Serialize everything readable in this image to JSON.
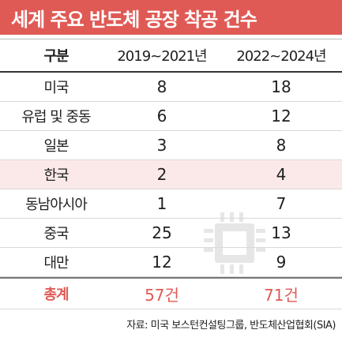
{
  "title": "세계 주요 반도체 공장 착공 건수",
  "columns": [
    "구분",
    "2019~2021년",
    "2022~2024년"
  ],
  "rows": [
    [
      "미국",
      "8",
      "18"
    ],
    [
      "유럽 및 중동",
      "6",
      "12"
    ],
    [
      "일본",
      "3",
      "8"
    ],
    [
      "한국",
      "2",
      "4"
    ],
    [
      "동남아시아",
      "1",
      "7"
    ],
    [
      "중국",
      "25",
      "13"
    ],
    [
      "대만",
      "12",
      "9"
    ]
  ],
  "total": [
    "총계",
    "57건",
    "71건"
  ],
  "source": "자료: 미국 보스턴컨설팅그룹, 반도체산업협회(SIA)",
  "colors": {
    "accent": "#e05a55",
    "highlight_row": "#fbe9e9",
    "chip_icon": "#e6e6e6"
  },
  "highlighted_row": "한국",
  "icon": "chip-icon"
}
